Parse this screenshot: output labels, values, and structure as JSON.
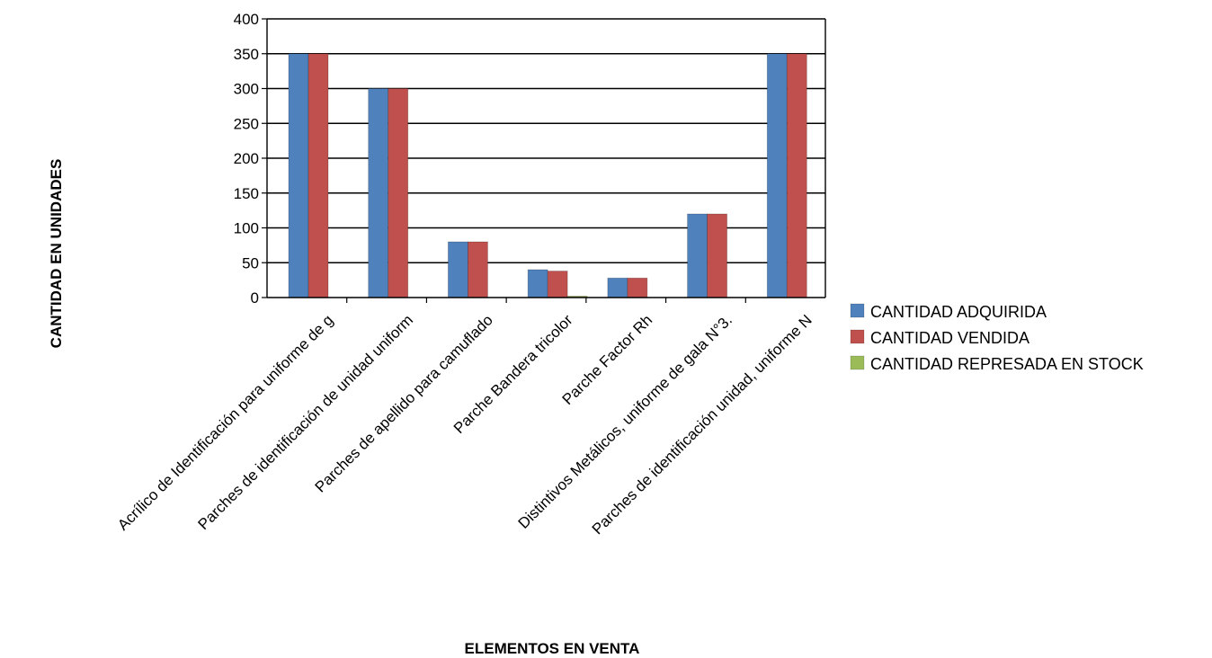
{
  "chart_data": {
    "type": "bar",
    "xlabel": "ELEMENTOS EN VENTA",
    "ylabel": "CANTIDAD EN UNIDADES",
    "ylim": [
      0,
      400
    ],
    "yticks": [
      0,
      50,
      100,
      150,
      200,
      250,
      300,
      350,
      400
    ],
    "grid": true,
    "legend_position": "right",
    "categories": [
      "Acrílico de Identificación para uniforme de g",
      "Parches de identificación de unidad uniform",
      "Parches de apellido para camuflado",
      "Parche Bandera tricolor",
      "Parche Factor Rh",
      "Distintivos Metálicos, uniforme de gala N°3.",
      "Parches de identificación unidad, uniforme N"
    ],
    "series": [
      {
        "name": "CANTIDAD ADQUIRIDA",
        "color": "#4F81BD",
        "values": [
          350,
          300,
          80,
          40,
          28,
          120,
          350
        ]
      },
      {
        "name": "CANTIDAD VENDIDA",
        "color": "#C0504D",
        "values": [
          350,
          300,
          80,
          38,
          28,
          120,
          350
        ]
      },
      {
        "name": "CANTIDAD REPRESADA EN STOCK",
        "color": "#9BBB59",
        "values": [
          0,
          0,
          0,
          2,
          0,
          0,
          0
        ]
      }
    ]
  }
}
